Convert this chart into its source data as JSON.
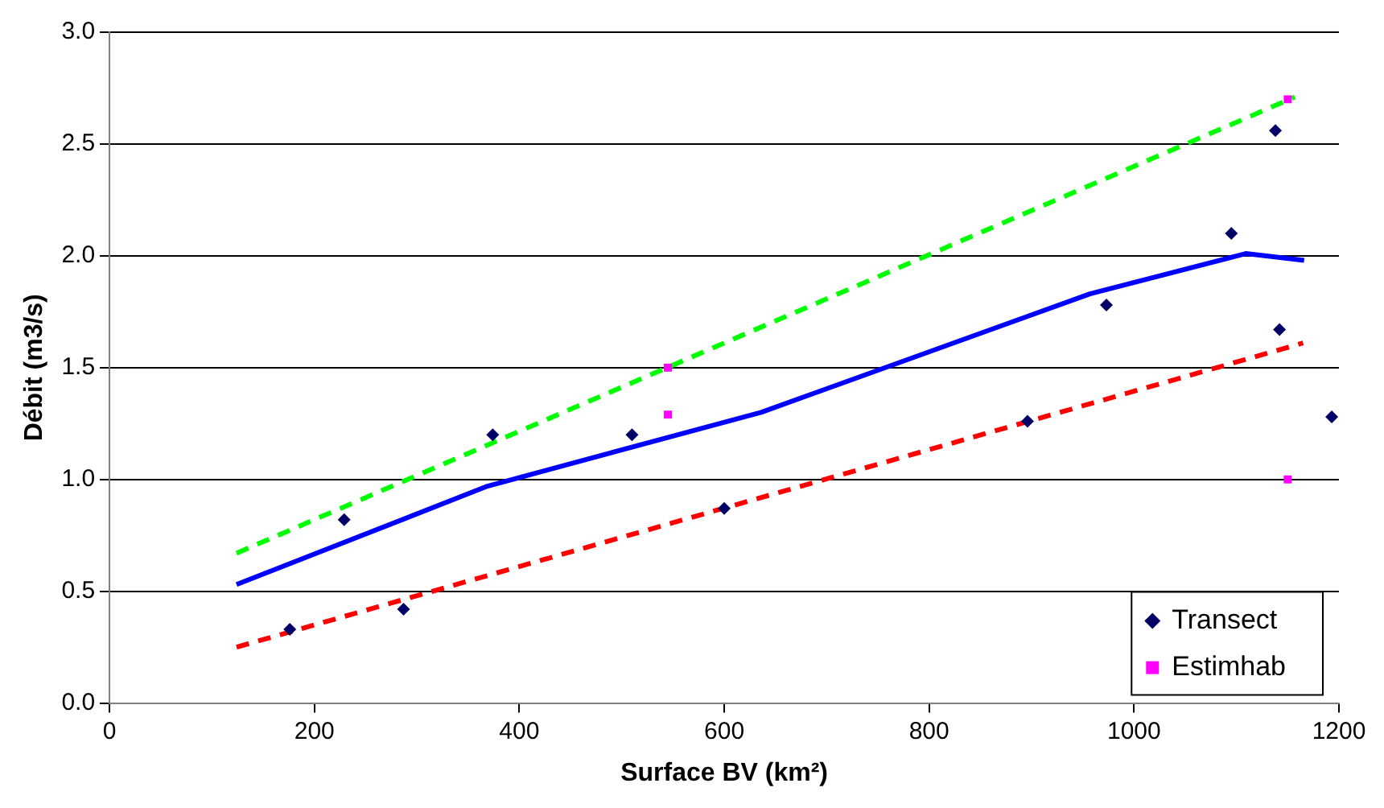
{
  "chart_data": {
    "type": "scatter",
    "xlabel": "Surface BV (km²)",
    "ylabel": "Débit (m3/s)",
    "xlim": [
      0,
      1200
    ],
    "xticks": [
      0,
      200,
      400,
      600,
      800,
      1000,
      1200
    ],
    "ylim": [
      0,
      3
    ],
    "yticks": [
      {
        "value": 0,
        "label": "0.0"
      },
      {
        "value": 0.5,
        "label": "0.5"
      },
      {
        "value": 1,
        "label": "1.0"
      },
      {
        "value": 1.5,
        "label": "1.5"
      },
      {
        "value": 2,
        "label": "2.0"
      },
      {
        "value": 2.5,
        "label": "2.5"
      },
      {
        "value": 3,
        "label": "3.0"
      }
    ],
    "grid": "y",
    "legend": "bottom right",
    "series": [
      {
        "type": "line",
        "color": "#00ff00",
        "line_style": "dashed",
        "marker": "none",
        "x": [
          124,
          1157
        ],
        "values": [
          0.67,
          2.71
        ]
      },
      {
        "type": "line",
        "color": "#ff0000",
        "line_style": "dashed",
        "marker": "none",
        "x": [
          124,
          1165
        ],
        "values": [
          0.25,
          1.61
        ]
      },
      {
        "type": "line",
        "color": "#0000ff",
        "line_style": "solid",
        "marker": "none",
        "x": [
          124,
          369,
          636,
          957,
          1109,
          1166
        ],
        "values": [
          0.53,
          0.97,
          1.3,
          1.83,
          2.01,
          1.98
        ]
      },
      {
        "type": "scatter",
        "name": "Transect",
        "color": "#000066",
        "marker": "diamond",
        "x": [
          176,
          229,
          287,
          374,
          510,
          600,
          896,
          973,
          1095,
          1138,
          1142,
          1193
        ],
        "values": [
          0.33,
          0.82,
          0.42,
          1.2,
          1.2,
          0.87,
          1.26,
          1.78,
          2.1,
          2.56,
          1.67,
          1.28
        ]
      },
      {
        "type": "scatter",
        "name": "Estimhab",
        "color": "#ff00ff",
        "marker": "square",
        "x": [
          545,
          545,
          1150,
          1150
        ],
        "values": [
          1.5,
          1.29,
          2.7,
          1.0
        ]
      }
    ]
  }
}
